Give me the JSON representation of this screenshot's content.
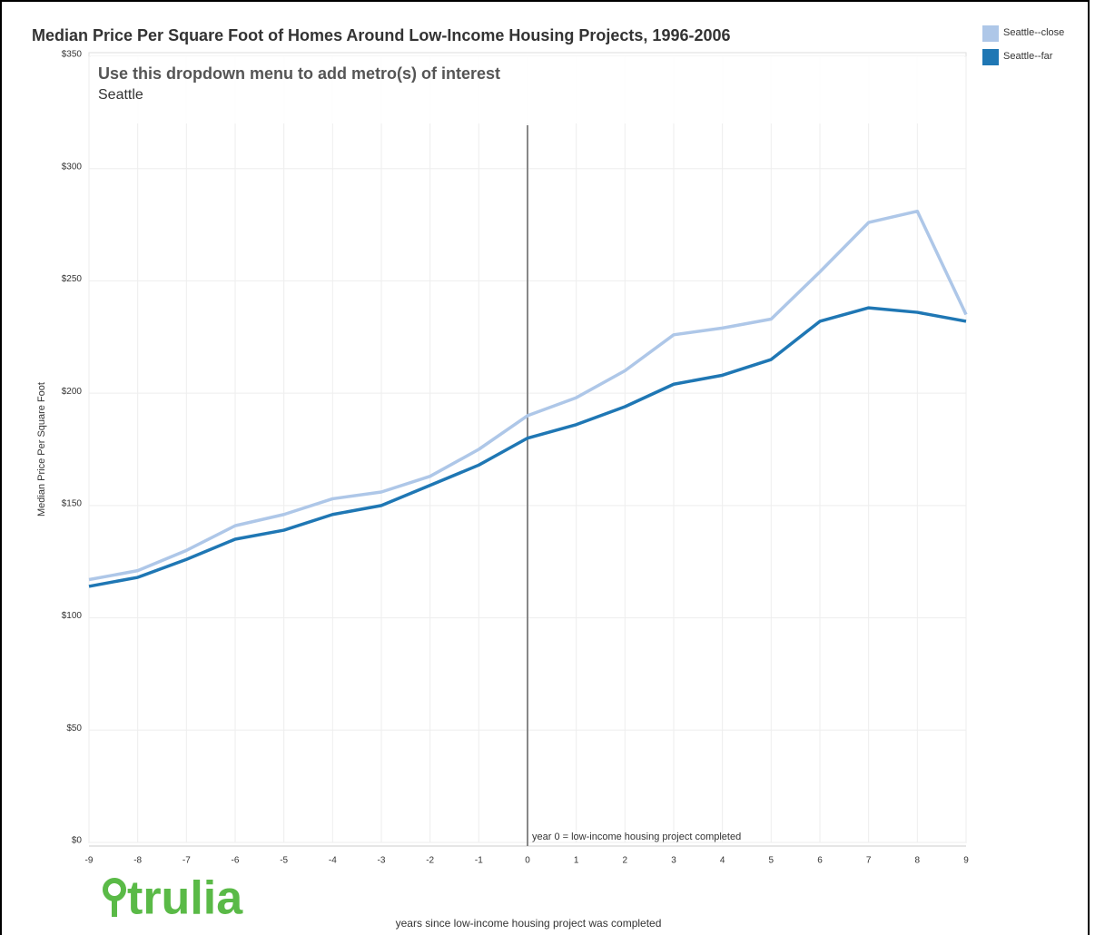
{
  "chart_data": {
    "type": "line",
    "title": "Median Price Per Square Foot of Homes Around Low-Income Housing Projects, 1996-2006",
    "dropdown_prompt": "Use this dropdown menu to add metro(s) of interest",
    "dropdown_value": "Seattle",
    "y_label": "Median Price Per Square Foot",
    "x_label": "years since low-income housing project was completed",
    "annotation": {
      "x": 0,
      "text": "year 0 = low-income housing project completed"
    },
    "logo": "trulia",
    "x": [
      -9,
      -8,
      -7,
      -6,
      -5,
      -4,
      -3,
      -2,
      -1,
      0,
      1,
      2,
      3,
      4,
      5,
      6,
      7,
      8,
      9
    ],
    "series": [
      {
        "name": "Seattle--close",
        "color": "#aec7e8",
        "values": [
          117,
          121,
          130,
          141,
          146,
          153,
          156,
          163,
          175,
          190,
          198,
          210,
          226,
          229,
          233,
          254,
          276,
          281,
          235
        ]
      },
      {
        "name": "Seattle--far",
        "color": "#1f77b4",
        "values": [
          114,
          118,
          126,
          135,
          139,
          146,
          150,
          159,
          168,
          180,
          186,
          194,
          204,
          208,
          215,
          232,
          238,
          236,
          232
        ]
      }
    ],
    "xlim": [
      -9,
      9
    ],
    "xticks": [
      -9,
      -8,
      -7,
      -6,
      -5,
      -4,
      -3,
      -2,
      -1,
      0,
      1,
      2,
      3,
      4,
      5,
      6,
      7,
      8,
      9
    ],
    "ylim": [
      0,
      350
    ],
    "yticks": [
      {
        "value": 0,
        "label": "$0"
      },
      {
        "value": 50,
        "label": "$50"
      },
      {
        "value": 100,
        "label": "$100"
      },
      {
        "value": 150,
        "label": "$150"
      },
      {
        "value": 200,
        "label": "$200"
      },
      {
        "value": 250,
        "label": "$250"
      },
      {
        "value": 300,
        "label": "$300"
      },
      {
        "value": 350,
        "label": "$350"
      }
    ],
    "grid": true,
    "legend": "top-right"
  }
}
